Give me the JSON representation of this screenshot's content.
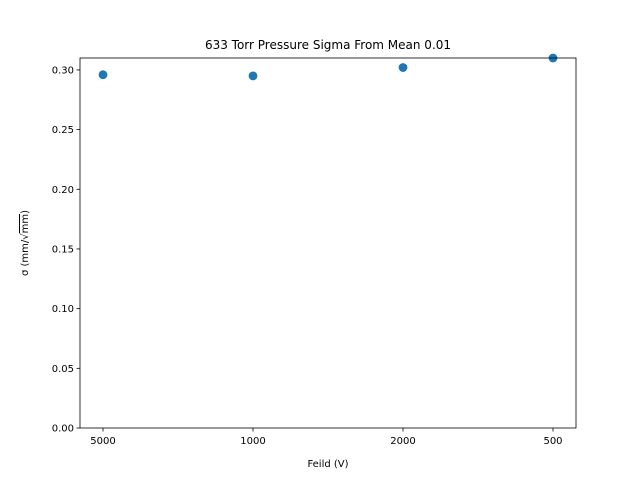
{
  "chart_data": {
    "type": "scatter",
    "title": "633 Torr Pressure Sigma From Mean 0.01",
    "xlabel": "Feild (V)",
    "ylabel_prefix": "σ (mm/√",
    "ylabel_radicand": "mm",
    "ylabel_suffix": ")",
    "categories": [
      "5000",
      "1000",
      "2000",
      "500"
    ],
    "values": [
      0.296,
      0.295,
      0.302,
      0.31
    ],
    "ylim": [
      0,
      0.31
    ],
    "yticks": [
      "0.00",
      "0.05",
      "0.10",
      "0.15",
      "0.20",
      "0.25",
      "0.30"
    ],
    "ytick_values": [
      0,
      0.05,
      0.1,
      0.15,
      0.2,
      0.25,
      0.3
    ],
    "marker_color": "#1f77b4",
    "grid": false,
    "legend": "none"
  }
}
